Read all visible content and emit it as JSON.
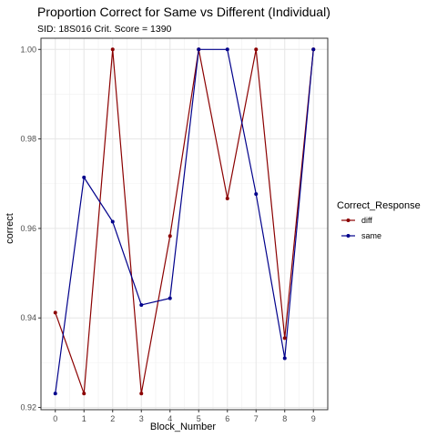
{
  "chart_data": {
    "type": "line",
    "title": "Proportion Correct for Same vs Different (Individual)",
    "subtitle": "SID:  18S016 Crit. Score =  1390",
    "xlabel": "Block_Number",
    "ylabel": "correct",
    "x": [
      0,
      1,
      2,
      3,
      4,
      5,
      6,
      7,
      8,
      9
    ],
    "xlim": [
      -0.5,
      9.5
    ],
    "ylim": [
      0.9195,
      1.0025
    ],
    "yticks": [
      0.92,
      0.94,
      0.96,
      0.98,
      1.0
    ],
    "ytick_labels": [
      "0.92",
      "0.94",
      "0.96",
      "0.98",
      "1.00"
    ],
    "xtick_labels": [
      "0",
      "1",
      "2",
      "3",
      "4",
      "5",
      "6",
      "7",
      "8",
      "9"
    ],
    "grid": true,
    "legend": {
      "title": "Correct_Response",
      "placement": "right"
    },
    "series": [
      {
        "name": "diff",
        "color": "#8b0000",
        "values": [
          0.9412,
          0.9231,
          1.0,
          0.9231,
          0.9583,
          1.0,
          0.9667,
          1.0,
          0.9355,
          1.0
        ]
      },
      {
        "name": "same",
        "color": "#00008b",
        "values": [
          0.9231,
          0.9714,
          0.9615,
          0.9429,
          0.9444,
          1.0,
          1.0,
          0.9677,
          0.931,
          1.0
        ]
      }
    ]
  }
}
